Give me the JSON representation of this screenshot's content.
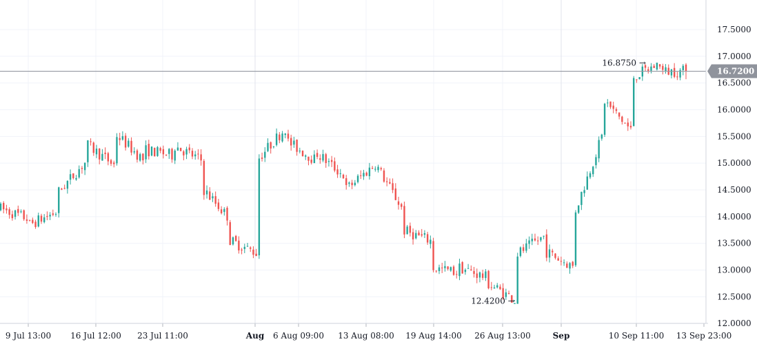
{
  "chart_data": {
    "type": "candlestick",
    "ylim": [
      11.9,
      17.86
    ],
    "yticks": [
      "12.0000",
      "12.5000",
      "13.0000",
      "13.5000",
      "14.0000",
      "14.5000",
      "15.0000",
      "15.5000",
      "16.0000",
      "16.5000",
      "17.0000",
      "17.5000"
    ],
    "xticks": [
      {
        "label": "9 Jul 13:00",
        "bold": false
      },
      {
        "label": "16 Jul 12:00",
        "bold": false
      },
      {
        "label": "23 Jul 11:00",
        "bold": false
      },
      {
        "label": "Aug",
        "bold": true
      },
      {
        "label": "6 Aug 09:00",
        "bold": false
      },
      {
        "label": "13 Aug 08:00",
        "bold": false
      },
      {
        "label": "19 Aug 14:00",
        "bold": false
      },
      {
        "label": "26 Aug 13:00",
        "bold": false
      },
      {
        "label": "Sep",
        "bold": true
      },
      {
        "label": "10 Sep 11:00",
        "bold": false
      },
      {
        "label": "13 Sep 23:00",
        "bold": false
      }
    ],
    "anchors": [
      [
        14.15,
        13.95
      ],
      [
        13.85,
        14.1
      ],
      [
        14.45,
        15.05
      ],
      [
        15.35,
        14.95
      ],
      [
        15.55,
        15.05
      ],
      [
        15.25,
        15.15
      ],
      [
        15.35,
        15.05
      ],
      [
        14.55,
        13.95
      ],
      [
        13.55,
        13.3
      ],
      [
        15.1,
        15.7
      ],
      [
        15.4,
        15.05
      ],
      [
        15.2,
        14.75
      ],
      [
        14.5,
        14.95
      ],
      [
        15.05,
        14.15
      ],
      [
        13.75,
        13.55
      ],
      [
        13.05,
        12.95
      ],
      [
        13.05,
        12.85
      ],
      [
        12.75,
        12.42
      ],
      [
        13.3,
        13.65
      ],
      [
        13.35,
        13.05
      ],
      [
        14.05,
        15.55
      ],
      [
        16.2,
        15.6
      ],
      [
        16.6,
        16.875
      ],
      [
        16.72,
        16.72
      ]
    ],
    "last_price": "16.7200",
    "high_marker": "16.8750",
    "low_marker": "12.4200",
    "colors": {
      "up": "#26a69a",
      "down": "#ef5350",
      "price_line": "#9598a1",
      "grid": "#f0f3fa",
      "crosshair": "#e0e3eb"
    }
  }
}
